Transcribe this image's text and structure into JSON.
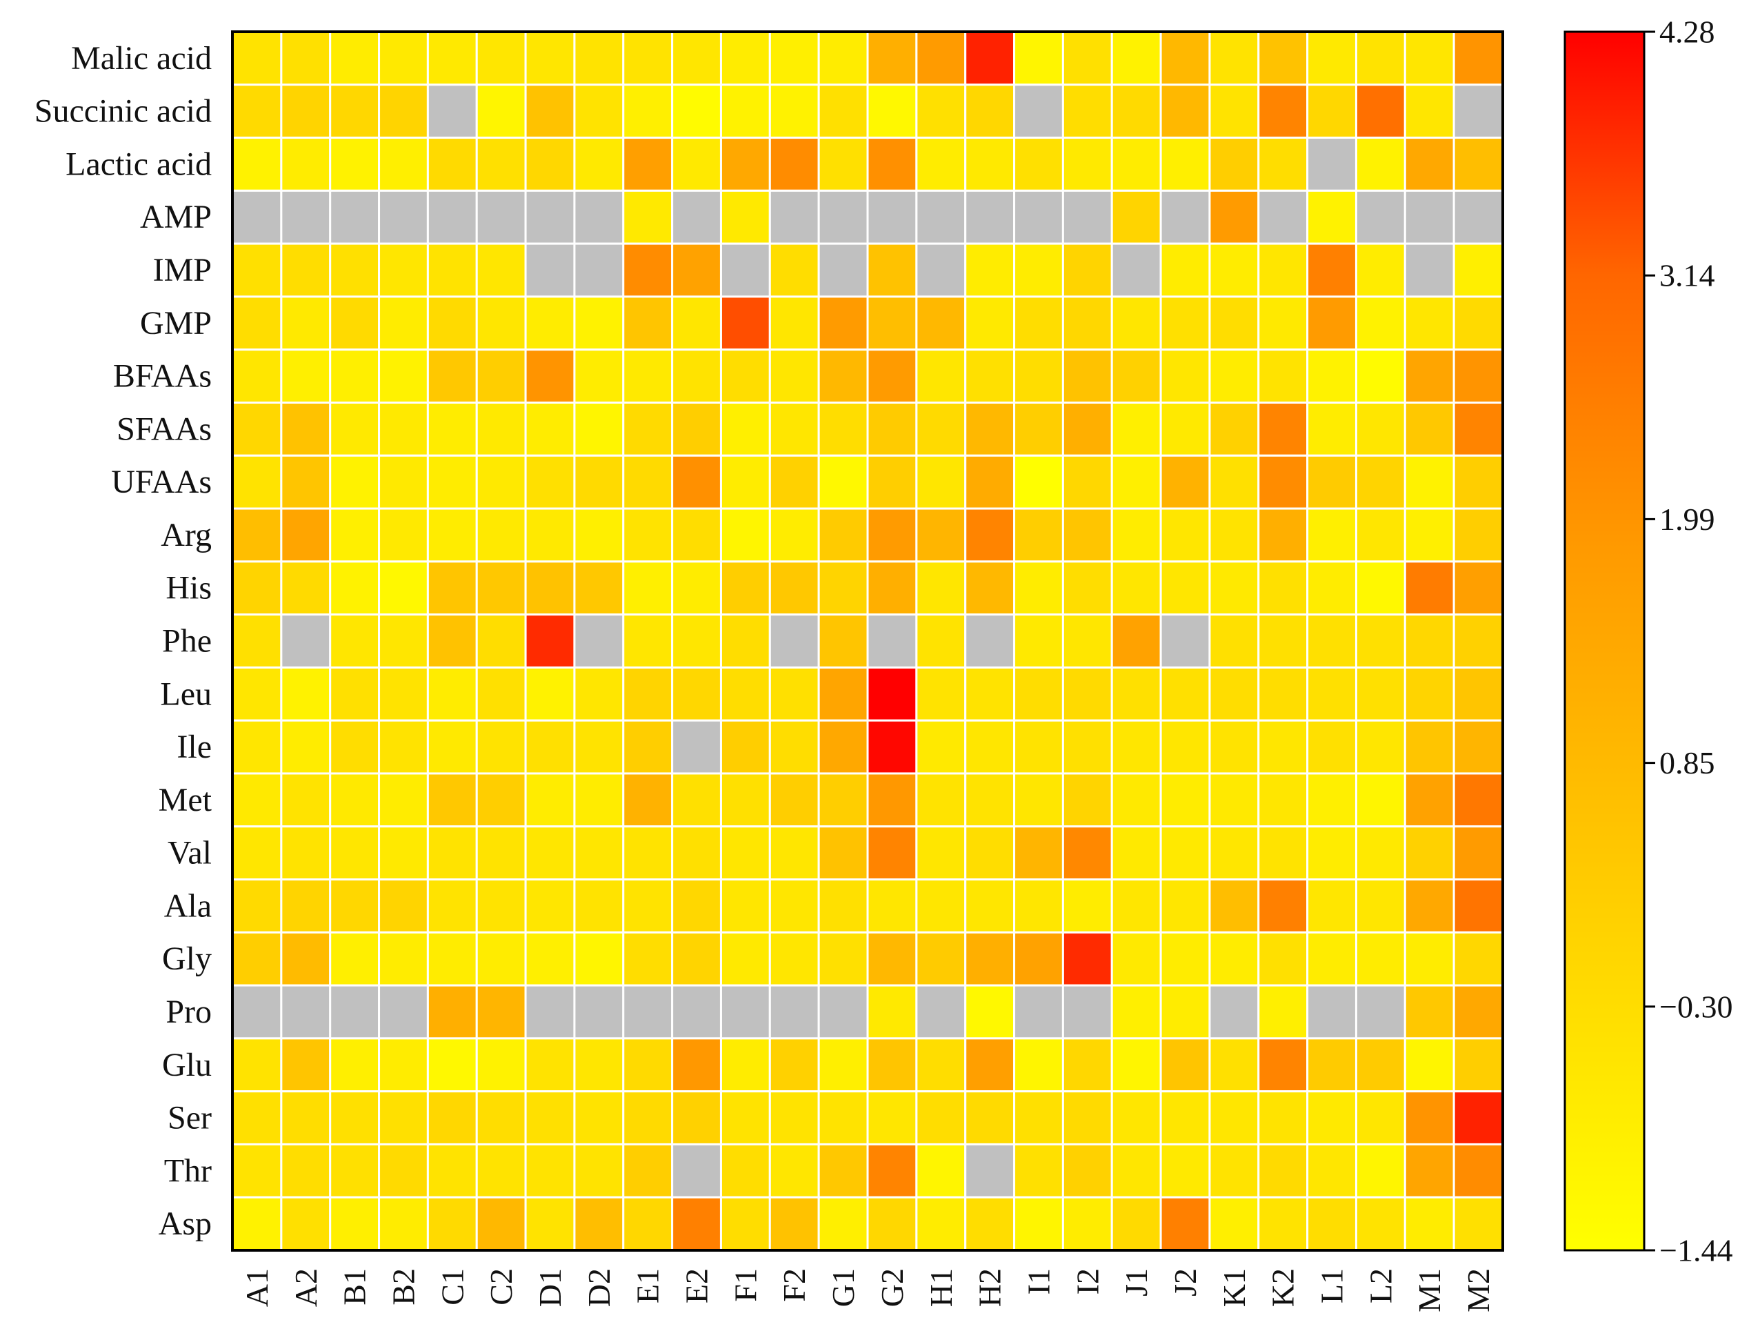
{
  "chart_data": {
    "type": "heatmap",
    "title": "",
    "xlabel": "",
    "ylabel": "",
    "columns": [
      "A1",
      "A2",
      "B1",
      "B2",
      "C1",
      "C2",
      "D1",
      "D2",
      "E1",
      "E2",
      "F1",
      "F2",
      "G1",
      "G2",
      "H1",
      "H2",
      "I1",
      "I2",
      "J1",
      "J2",
      "K1",
      "K2",
      "L1",
      "L2",
      "M1",
      "M2"
    ],
    "rows": [
      "Malic acid",
      "Succinic acid",
      "Lactic acid",
      "AMP",
      "IMP",
      "GMP",
      "BFAAs",
      "SFAAs",
      "UFAAs",
      "Arg",
      "His",
      "Phe",
      "Leu",
      "Ile",
      "Met",
      "Val",
      "Ala",
      "Gly",
      "Pro",
      "Glu",
      "Ser",
      "Thr",
      "Asp"
    ],
    "values": [
      [
        -0.5,
        -0.4,
        -0.8,
        -0.7,
        -0.7,
        -0.6,
        -0.6,
        -0.5,
        -0.5,
        -0.6,
        -0.8,
        -0.9,
        -0.8,
        1.2,
        1.8,
        3.9,
        -1.1,
        -0.4,
        -1.0,
        0.9,
        -0.5,
        0.6,
        -0.7,
        -0.5,
        -0.6,
        2.0
      ],
      [
        -0.2,
        0.0,
        -0.1,
        0.0,
        null,
        -1.1,
        0.6,
        -0.5,
        -0.9,
        -1.3,
        -1.0,
        -1.0,
        -0.4,
        -1.2,
        -0.4,
        -0.1,
        null,
        -0.3,
        -0.2,
        0.9,
        -0.5,
        2.4,
        -0.1,
        2.9,
        -0.6,
        null
      ],
      [
        -1.0,
        -0.8,
        -1.0,
        -0.9,
        -0.2,
        -0.4,
        -0.1,
        -0.7,
        1.7,
        -0.7,
        1.4,
        2.2,
        -0.4,
        2.1,
        -0.8,
        -0.7,
        -0.4,
        -0.7,
        -0.8,
        -0.9,
        0.2,
        -0.3,
        null,
        -1.0,
        1.4,
        0.7
      ],
      [
        null,
        null,
        null,
        null,
        null,
        null,
        null,
        null,
        -0.7,
        null,
        -0.7,
        null,
        null,
        null,
        null,
        null,
        null,
        null,
        0.0,
        null,
        1.8,
        null,
        -1.0,
        null,
        null,
        null
      ],
      [
        -0.4,
        -0.3,
        -0.4,
        -0.6,
        -0.5,
        -0.6,
        null,
        null,
        2.2,
        1.6,
        null,
        -0.3,
        null,
        0.6,
        null,
        -0.8,
        -0.8,
        0.0,
        null,
        -0.8,
        -0.8,
        -0.6,
        2.5,
        -0.8,
        null,
        -0.9
      ],
      [
        -0.3,
        -0.7,
        -0.2,
        -0.8,
        -0.2,
        -0.6,
        -0.8,
        -1.0,
        0.5,
        -0.6,
        3.4,
        -0.6,
        1.8,
        0.7,
        0.9,
        -0.7,
        -0.3,
        -0.1,
        -0.6,
        -0.4,
        -0.3,
        -0.7,
        1.8,
        -1.0,
        -0.6,
        -0.2
      ],
      [
        -0.6,
        -0.9,
        -0.9,
        -1.0,
        0.4,
        0.2,
        2.0,
        -0.8,
        -0.7,
        -0.5,
        -0.3,
        -0.6,
        0.9,
        1.8,
        -0.6,
        -0.4,
        -0.3,
        0.6,
        0.1,
        -0.6,
        -0.8,
        -0.5,
        -1.0,
        -1.3,
        1.5,
        2.0
      ],
      [
        -0.1,
        0.6,
        -0.7,
        -0.7,
        -0.8,
        -0.7,
        -0.8,
        -1.1,
        -0.2,
        0.2,
        -0.9,
        -0.6,
        -0.3,
        0.3,
        -0.2,
        0.9,
        0.2,
        1.2,
        -0.9,
        -0.7,
        0.1,
        2.4,
        -0.8,
        -0.6,
        0.4,
        2.4
      ],
      [
        -0.5,
        0.5,
        -1.0,
        -0.7,
        -0.8,
        -0.7,
        -0.4,
        -0.2,
        -0.2,
        2.1,
        -0.8,
        0.1,
        -1.2,
        0.2,
        -0.6,
        1.3,
        -1.4,
        -0.1,
        -0.9,
        1.1,
        -0.4,
        2.2,
        0.3,
        0.0,
        -1.0,
        0.2
      ],
      [
        0.7,
        1.5,
        -0.9,
        -0.7,
        -0.8,
        -0.7,
        -0.7,
        -0.9,
        -0.5,
        -0.3,
        -1.1,
        -0.8,
        0.3,
        1.8,
        1.0,
        2.4,
        0.2,
        0.5,
        -0.8,
        -0.6,
        -0.5,
        1.2,
        -0.9,
        -0.6,
        -0.9,
        0.2
      ],
      [
        0.0,
        -0.2,
        -1.0,
        -1.2,
        0.5,
        0.4,
        0.6,
        0.4,
        -0.9,
        -0.8,
        0.2,
        0.4,
        0.0,
        1.2,
        -0.6,
        0.9,
        -0.8,
        -0.3,
        -0.6,
        -0.6,
        -0.7,
        -0.4,
        -0.8,
        -1.2,
        2.6,
        1.7
      ],
      [
        -0.4,
        null,
        -0.6,
        -0.6,
        0.6,
        -0.3,
        3.8,
        null,
        -0.6,
        -0.6,
        -0.3,
        null,
        0.5,
        null,
        -0.5,
        null,
        -0.7,
        -0.6,
        1.6,
        null,
        -0.4,
        -0.4,
        -0.4,
        -0.4,
        -0.1,
        0.1
      ],
      [
        -0.6,
        -1.0,
        -0.4,
        -0.5,
        -0.8,
        -0.4,
        -1.0,
        -0.6,
        0.0,
        -0.1,
        -0.3,
        -0.4,
        1.5,
        4.3,
        -0.5,
        -0.5,
        -0.3,
        -0.2,
        -0.4,
        -0.4,
        -0.3,
        -0.3,
        -0.4,
        -0.4,
        0.0,
        0.5
      ],
      [
        -0.6,
        -0.8,
        -0.3,
        -0.5,
        -0.7,
        -0.5,
        -0.4,
        -0.5,
        0.2,
        null,
        0.2,
        -0.3,
        1.4,
        4.2,
        -0.7,
        -0.6,
        -0.5,
        -0.4,
        -0.6,
        -0.6,
        -0.5,
        -0.6,
        -0.4,
        -0.6,
        0.5,
        1.0
      ],
      [
        -0.7,
        -0.5,
        -0.7,
        -0.8,
        0.4,
        0.2,
        -0.8,
        -0.8,
        1.1,
        -0.4,
        -0.4,
        0.2,
        0.2,
        1.9,
        -0.5,
        -0.5,
        -0.6,
        0.0,
        -0.7,
        -0.8,
        -0.7,
        -0.6,
        -0.9,
        -1.1,
        1.6,
        2.7
      ],
      [
        -0.6,
        -0.5,
        -0.6,
        -0.7,
        -0.5,
        -0.5,
        -0.6,
        -0.6,
        -0.5,
        -0.4,
        -0.6,
        -0.6,
        0.6,
        2.4,
        -0.6,
        -0.3,
        1.0,
        2.3,
        -0.7,
        -0.7,
        -0.6,
        -0.5,
        -0.8,
        -0.7,
        0.1,
        1.8
      ],
      [
        -0.2,
        0.0,
        -0.1,
        0.0,
        -0.5,
        -0.5,
        -0.6,
        -0.5,
        -0.5,
        -0.1,
        -0.6,
        -0.6,
        -0.4,
        -0.6,
        -0.6,
        -0.6,
        -0.6,
        -0.8,
        -0.6,
        -0.6,
        0.7,
        2.5,
        -0.6,
        -0.6,
        1.4,
        2.8
      ],
      [
        0.2,
        0.8,
        -0.9,
        -0.8,
        -0.8,
        -0.8,
        -0.9,
        -1.1,
        -0.3,
        0.0,
        -0.7,
        -0.6,
        -0.4,
        0.9,
        0.3,
        1.2,
        1.6,
        3.8,
        -0.7,
        -0.8,
        -0.8,
        -0.4,
        -0.8,
        -0.8,
        -0.8,
        -0.1
      ],
      [
        null,
        null,
        null,
        null,
        1.2,
        1.0,
        null,
        null,
        null,
        null,
        null,
        null,
        null,
        -0.7,
        null,
        -1.2,
        null,
        null,
        -0.9,
        -0.8,
        null,
        -0.9,
        null,
        null,
        0.4,
        1.4
      ],
      [
        -0.5,
        0.5,
        -0.9,
        -0.8,
        -1.2,
        -1.0,
        -0.5,
        -0.6,
        -0.2,
        1.9,
        -0.8,
        0.1,
        -0.9,
        0.5,
        -0.3,
        1.7,
        -1.1,
        -0.1,
        -1.1,
        0.5,
        -0.4,
        2.4,
        0.3,
        0.3,
        -1.1,
        0.2
      ],
      [
        -0.4,
        -0.3,
        -0.4,
        -0.4,
        -0.1,
        -0.3,
        -0.4,
        -0.5,
        -0.2,
        0.1,
        -0.5,
        -0.5,
        -0.5,
        -0.6,
        -0.3,
        -0.2,
        -0.4,
        -0.2,
        -0.6,
        -0.6,
        -0.6,
        -0.5,
        -0.7,
        -0.6,
        2.0,
        3.9
      ],
      [
        -0.5,
        -0.3,
        -0.4,
        -0.2,
        -0.5,
        -0.5,
        -0.5,
        -0.5,
        0.2,
        null,
        -0.3,
        -0.6,
        0.4,
        2.4,
        -1.1,
        null,
        -0.4,
        0.1,
        -0.6,
        -0.7,
        -0.5,
        -0.2,
        -0.6,
        -1.1,
        1.5,
        2.2
      ],
      [
        -1.0,
        -0.4,
        -0.9,
        -0.8,
        -0.2,
        0.9,
        -0.5,
        0.7,
        -0.1,
        2.5,
        -0.3,
        0.6,
        -0.9,
        -0.1,
        -0.8,
        -0.3,
        -1.1,
        -0.8,
        -0.2,
        2.5,
        -0.9,
        -0.5,
        -0.3,
        -0.5,
        -0.8,
        -0.4
      ]
    ],
    "colorbar": {
      "min": -1.44,
      "max": 4.28,
      "ticks": [
        "4.28",
        "3.14",
        "1.99",
        "0.85",
        "−0.30",
        "−1.44"
      ],
      "colors": [
        "#ffff00",
        "#ffcc00",
        "#ff9900",
        "#ff6600",
        "#ff0000"
      ]
    },
    "missing_color": "#c0c0c0",
    "grid": true,
    "legend_position": "right"
  }
}
